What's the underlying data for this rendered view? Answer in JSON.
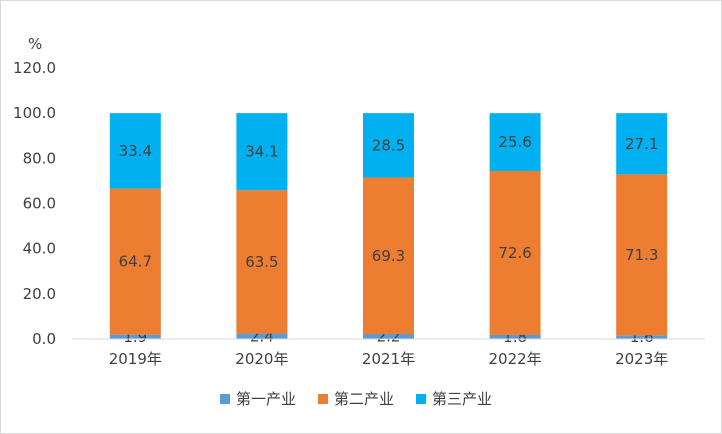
{
  "chart_data": {
    "type": "bar",
    "stacked": true,
    "percent_stacked": true,
    "title": "",
    "xlabel": "",
    "ylabel": "",
    "y_unit": "%",
    "categories": [
      "2019年",
      "2020年",
      "2021年",
      "2022年",
      "2023年"
    ],
    "series": [
      {
        "name": "第一产业",
        "values": [
          1.9,
          2.4,
          2.2,
          1.8,
          1.6
        ],
        "color": "#5b9bd5"
      },
      {
        "name": "第二产业",
        "values": [
          64.7,
          63.5,
          69.3,
          72.6,
          71.3
        ],
        "color": "#ed7d31"
      },
      {
        "name": "第三产业",
        "values": [
          33.4,
          34.1,
          28.5,
          25.6,
          27.1
        ],
        "color": "#00b0f0"
      }
    ],
    "ylim": [
      0,
      120
    ],
    "yticks": [
      "0.0",
      "20.0",
      "40.0",
      "60.0",
      "80.0",
      "100.0",
      "120.0"
    ],
    "grid": false,
    "legend_position": "bottom"
  }
}
